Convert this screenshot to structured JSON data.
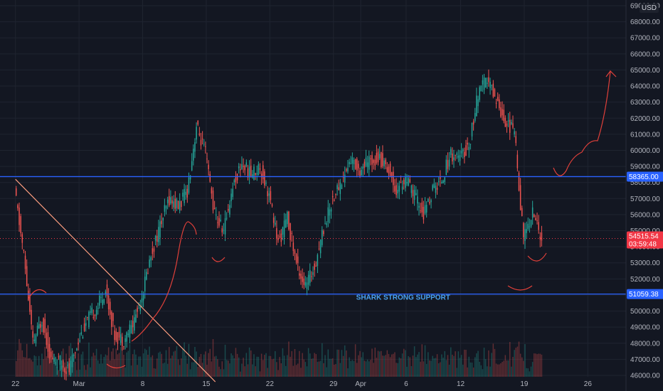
{
  "chart_data": {
    "type": "candlestick",
    "symbol_currency": "USD",
    "ylim": [
      46000,
      69000
    ],
    "y_ticks": [
      46000,
      47000,
      48000,
      49000,
      50000,
      51000,
      52000,
      53000,
      54000,
      55000,
      56000,
      57000,
      58000,
      59000,
      60000,
      61000,
      62000,
      63000,
      64000,
      65000,
      66000,
      67000,
      68000,
      69000
    ],
    "y_tick_labels": [
      "46000.00",
      "47000.00",
      "48000.00",
      "49000.00",
      "50000.00",
      "51000.00",
      "52000.00",
      "53000.00",
      "54000.00",
      "55000.00",
      "56000.00",
      "57000.00",
      "58000.00",
      "59000.00",
      "60000.00",
      "61000.00",
      "62000.00",
      "63000.00",
      "64000.00",
      "65000.00",
      "66000.00",
      "67000.00",
      "68000.00",
      "69000.00"
    ],
    "x_ticks": [
      {
        "label": "22",
        "day": 0
      },
      {
        "label": "Mar",
        "day": 7
      },
      {
        "label": "8",
        "day": 14
      },
      {
        "label": "15",
        "day": 21
      },
      {
        "label": "22",
        "day": 28
      },
      {
        "label": "29",
        "day": 35
      },
      {
        "label": "Apr",
        "day": 38
      },
      {
        "label": "6",
        "day": 43
      },
      {
        "label": "12",
        "day": 49
      },
      {
        "label": "19",
        "day": 56
      },
      {
        "label": "26",
        "day": 63
      }
    ],
    "x_range_days": [
      -1.7,
      67.2
    ],
    "series": [
      {
        "values_day_close": [
          [
            0,
            57500
          ],
          [
            1,
            53500
          ],
          [
            2,
            48000
          ],
          [
            3,
            49500
          ],
          [
            4,
            47000
          ],
          [
            5,
            46800
          ],
          [
            6,
            46300
          ],
          [
            7,
            48200
          ],
          [
            8,
            49400
          ],
          [
            9,
            50200
          ],
          [
            10,
            51300
          ],
          [
            11,
            48500
          ],
          [
            12,
            48200
          ],
          [
            13,
            49200
          ],
          [
            14,
            51000
          ],
          [
            15,
            53500
          ],
          [
            16,
            55300
          ],
          [
            17,
            57000
          ],
          [
            18,
            56500
          ],
          [
            19,
            57500
          ],
          [
            20,
            61500
          ],
          [
            21,
            59800
          ],
          [
            22,
            56000
          ],
          [
            23,
            55000
          ],
          [
            24,
            57800
          ],
          [
            25,
            59200
          ],
          [
            26,
            58500
          ],
          [
            27,
            59000
          ],
          [
            28,
            57200
          ],
          [
            29,
            54200
          ],
          [
            30,
            55800
          ],
          [
            31,
            53000
          ],
          [
            32,
            51500
          ],
          [
            33,
            52800
          ],
          [
            34,
            55200
          ],
          [
            35,
            57000
          ],
          [
            36,
            58100
          ],
          [
            37,
            59400
          ],
          [
            38,
            58800
          ],
          [
            39,
            59300
          ],
          [
            40,
            59600
          ],
          [
            41,
            59000
          ],
          [
            42,
            57500
          ],
          [
            43,
            58200
          ],
          [
            44,
            57200
          ],
          [
            45,
            56000
          ],
          [
            46,
            57500
          ],
          [
            47,
            58200
          ],
          [
            48,
            59800
          ],
          [
            49,
            59500
          ],
          [
            50,
            60300
          ],
          [
            51,
            63500
          ],
          [
            52,
            64400
          ],
          [
            53,
            63200
          ],
          [
            54,
            61800
          ],
          [
            55,
            61200
          ],
          [
            56,
            54500
          ],
          [
            57,
            56200
          ],
          [
            58,
            54515.54
          ]
        ]
      }
    ],
    "annotations": [
      {
        "type": "hline",
        "value": 58365.0,
        "label": "58365.00",
        "color": "#2962ff"
      },
      {
        "type": "hline",
        "value": 51059.38,
        "label": "51059.38",
        "color": "#2962ff"
      },
      {
        "type": "hline_dotted",
        "value": 54515.54,
        "color": "#f23645"
      },
      {
        "type": "text",
        "text": "SHARK STRONG SUPPORT",
        "day": 37.5,
        "value": 50700,
        "color": "#2196f3"
      },
      {
        "type": "trendline",
        "from": {
          "day": 0,
          "value": 58200
        },
        "to": {
          "day": 22,
          "value": 45600
        },
        "color": "#ff9f80"
      }
    ],
    "last_price": {
      "label": "54515.54",
      "countdown": "03:59:48",
      "color": "#f23645"
    }
  }
}
